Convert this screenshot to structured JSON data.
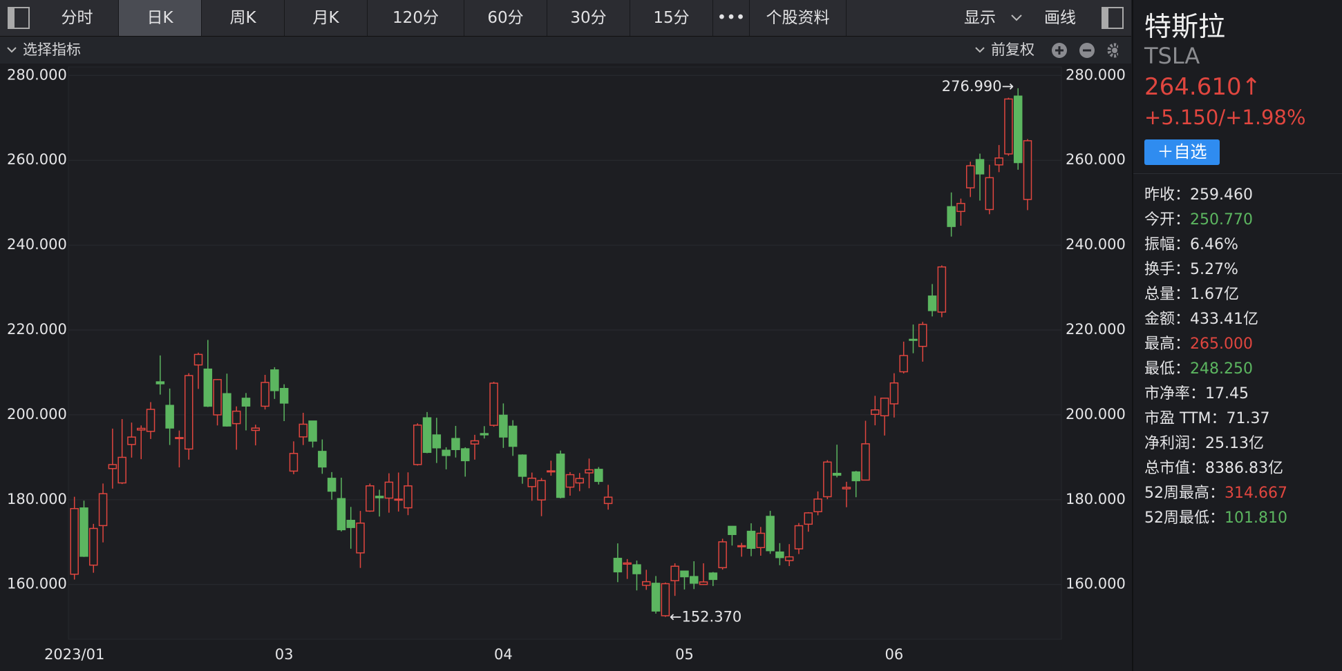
{
  "toolbar": {
    "tabs": [
      "分时",
      "日K",
      "周K",
      "月K",
      "120分",
      "60分",
      "30分",
      "15分",
      "•••",
      "个股资料"
    ],
    "selected_tab": 1,
    "right": [
      "显示",
      "画线"
    ]
  },
  "indicator_bar": {
    "left": "选择指标",
    "right": "前复权"
  },
  "chart_data": {
    "type": "candlestick",
    "up_color": "#e0463f",
    "down_color": "#5cb660",
    "categories": [
      "2023/01",
      null,
      null,
      null,
      null,
      null,
      null,
      null,
      null,
      null,
      null,
      null,
      null,
      null,
      null,
      null,
      null,
      null,
      null,
      null,
      null,
      null,
      "03",
      null,
      null,
      null,
      null,
      null,
      null,
      null,
      null,
      null,
      null,
      null,
      null,
      null,
      null,
      null,
      null,
      null,
      null,
      null,
      null,
      null,
      null,
      "04",
      null,
      null,
      null,
      null,
      null,
      null,
      null,
      null,
      null,
      null,
      null,
      null,
      null,
      null,
      null,
      null,
      null,
      null,
      "05",
      null,
      null,
      null,
      null,
      null,
      null,
      null,
      null,
      null,
      null,
      null,
      null,
      null,
      null,
      null,
      null,
      null,
      null,
      null,
      null,
      null,
      "06",
      null,
      null,
      null,
      null,
      null,
      null,
      null,
      null,
      null,
      null,
      null,
      null,
      null,
      null
    ],
    "open": [
      162.43,
      178.05,
      164.57,
      173.89,
      187.33,
      183.95,
      193.01,
      196.43,
      196.1,
      207.78,
      202.23,
      194.42,
      191.94,
      211.76,
      210.78,
      199.99,
      204.99,
      197.93,
      203.91,
      196.33,
      202.03,
      210.59,
      206.21,
      186.74,
      194.8,
      198.54,
      191.38,
      185.04,
      180.25,
      175.13,
      167.46,
      177.31,
      180.8,
      180.37,
      180.13,
      178.08,
      188.28,
      199.3,
      195.26,
      191.65,
      194.42,
      192.0,
      193.13,
      195.58,
      197.53,
      199.91,
      197.32,
      190.52,
      183.08,
      179.94,
      186.69,
      190.74,
      182.96,
      183.95,
      186.32,
      187.15,
      179.1,
      166.17,
      164.8,
      164.65,
      159.82,
      160.29,
      152.64,
      160.9,
      163.17,
      161.88,
      160.01,
      162.71,
      163.97,
      173.72,
      168.95,
      172.55,
      168.7,
      176.07,
      167.66,
      165.65,
      168.41,
      174.22,
      177.17,
      180.7,
      186.2,
      182.56,
      186.54,
      184.62,
      200.1,
      199.78,
      202.59,
      210.15,
      217.8,
      216.14,
      228.0,
      224.22,
      249.07,
      247.94,
      253.51,
      260.17,
      248.4,
      258.92,
      261.5,
      275.13,
      250.77
    ],
    "high": [
      180.68,
      179.77,
      174.3,
      183.81,
      196.75,
      199.0,
      198.17,
      197.5,
      203.0,
      214.0,
      206.2,
      196.3,
      209.82,
      214.66,
      217.65,
      208.44,
      209.71,
      201.99,
      205.14,
      197.67,
      209.42,
      211.23,
      207.2,
      193.75,
      200.48,
      198.6,
      194.2,
      186.5,
      185.18,
      178.29,
      177.35,
      183.8,
      182.34,
      186.22,
      186.4,
      186.44,
      198.0,
      200.66,
      199.31,
      192.36,
      197.39,
      192.35,
      195.29,
      197.33,
      207.79,
      202.69,
      198.74,
      190.68,
      186.39,
      185.1,
      189.19,
      191.58,
      186.5,
      186.28,
      189.69,
      187.69,
      183.5,
      169.7,
      166.0,
      165.65,
      163.47,
      162.0,
      160.48,
      165.0,
      163.28,
      165.49,
      165.0,
      162.95,
      170.79,
      173.8,
      169.82,
      174.43,
      173.57,
      177.38,
      169.76,
      169.52,
      174.5,
      177.06,
      181.95,
      189.32,
      192.96,
      184.22,
      186.78,
      198.6,
      204.48,
      203.95,
      209.8,
      217.25,
      221.29,
      221.91,
      230.83,
      235.23,
      252.42,
      250.97,
      259.68,
      261.57,
      258.95,
      263.6,
      274.75,
      276.99,
      265.0
    ],
    "low": [
      161.17,
      166.5,
      162.78,
      169.93,
      182.61,
      183.69,
      189.92,
      189.55,
      194.31,
      204.77,
      192.89,
      187.61,
      189.44,
      206.11,
      201.84,
      197.5,
      197.22,
      191.78,
      196.33,
      192.8,
      201.26,
      203.75,
      198.52,
      186.01,
      192.88,
      192.3,
      186.1,
      180.0,
      172.51,
      168.44,
      163.91,
      177.14,
      176.03,
      176.93,
      177.2,
      176.35,
      188.04,
      190.95,
      188.65,
      187.15,
      189.94,
      185.43,
      189.44,
      194.42,
      197.2,
      192.2,
      190.32,
      183.76,
      179.74,
      176.11,
      185.65,
      180.31,
      180.94,
      182.01,
      182.69,
      183.58,
      177.65,
      160.56,
      161.32,
      158.61,
      158.75,
      153.14,
      152.37,
      157.32,
      158.83,
      158.93,
      159.91,
      159.65,
      163.51,
      169.19,
      166.56,
      166.68,
      166.79,
      167.23,
      164.55,
      164.35,
      167.19,
      172.45,
      176.31,
      180.11,
      185.26,
      178.22,
      180.58,
      184.53,
      197.53,
      195.12,
      199.37,
      209.75,
      214.52,
      212.53,
      223.2,
      223.01,
      242.02,
      244.59,
      251.34,
      250.5,
      247.29,
      257.21,
      261.07,
      257.78,
      248.25
    ],
    "close": [
      177.9,
      166.66,
      173.22,
      181.41,
      188.27,
      189.98,
      194.76,
      196.81,
      201.29,
      207.32,
      196.89,
      194.64,
      209.25,
      214.24,
      202.04,
      208.31,
      197.37,
      200.86,
      202.07,
      196.88,
      207.63,
      205.71,
      202.77,
      190.9,
      197.79,
      193.81,
      187.71,
      182.0,
      172.92,
      173.44,
      174.48,
      183.26,
      180.45,
      184.13,
      180.13,
      183.25,
      197.58,
      191.15,
      192.22,
      190.41,
      191.81,
      189.19,
      193.88,
      195.28,
      207.46,
      194.77,
      192.58,
      185.52,
      185.06,
      184.51,
      186.79,
      180.54,
      185.9,
      185.0,
      187.04,
      184.31,
      180.59,
      162.99,
      165.08,
      162.55,
      160.67,
      153.75,
      160.19,
      164.31,
      161.83,
      160.31,
      160.61,
      161.2,
      170.06,
      171.79,
      169.15,
      168.54,
      172.08,
      167.98,
      166.35,
      166.52,
      173.86,
      176.89,
      180.14,
      188.87,
      185.77,
      182.9,
      184.47,
      193.17,
      201.16,
      203.93,
      207.52,
      213.97,
      217.61,
      221.31,
      224.57,
      234.86,
      244.4,
      249.83,
      258.71,
      256.79,
      255.9,
      260.54,
      274.45,
      259.46,
      264.61
    ],
    "ylim": [
      147.1,
      282
    ],
    "yticks": [
      {
        "value": 160,
        "label": "160.000"
      },
      {
        "value": 180,
        "label": "180.000"
      },
      {
        "value": 200,
        "label": "200.000"
      },
      {
        "value": 220,
        "label": "220.000"
      },
      {
        "value": 240,
        "label": "240.000"
      },
      {
        "value": 260,
        "label": "260.000"
      },
      {
        "value": 280,
        "label": "280.000"
      }
    ],
    "grid": true,
    "annotations": [
      {
        "value": 276.99,
        "label": "276.990→"
      },
      {
        "value": 152.37,
        "label": "←152.370"
      }
    ]
  },
  "sidebar": {
    "name": "特斯拉",
    "code": "TSLA",
    "price": "264.610↑",
    "change": "+5.150/+1.98%",
    "button": "＋自选",
    "price_color": "#e0463f",
    "fields": [
      {
        "label": "昨收：",
        "value": "259.460"
      },
      {
        "label": "今开：",
        "value": "250.770",
        "color": "#5cb660"
      },
      {
        "label": "振幅：",
        "value": "6.46%"
      },
      {
        "label": "换手：",
        "value": "5.27%"
      },
      {
        "label": "总量：",
        "value": "1.67亿"
      },
      {
        "label": "金额：",
        "value": "433.41亿"
      },
      {
        "label": "最高：",
        "value": "265.000",
        "color": "#e0463f"
      },
      {
        "label": "最低：",
        "value": "248.250",
        "color": "#5cb660"
      },
      {
        "label": "市净率：",
        "value": "17.45"
      },
      {
        "label": "市盈 TTM：",
        "value": "71.37"
      },
      {
        "label": "净利润：",
        "value": "25.13亿"
      },
      {
        "label": "总市值：",
        "value": "8386.83亿"
      },
      {
        "label": "52周最高：",
        "value": "314.667",
        "color": "#e0463f"
      },
      {
        "label": "52周最低：",
        "value": "101.810",
        "color": "#5cb660"
      }
    ]
  }
}
